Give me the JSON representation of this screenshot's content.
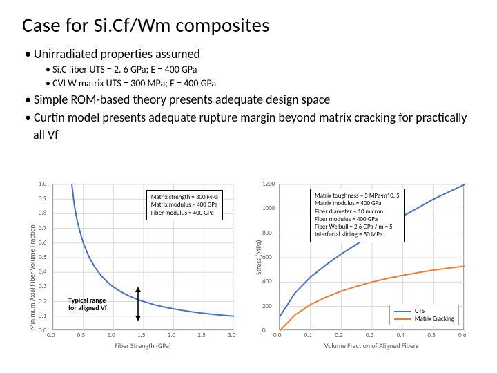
{
  "title": "Case for Si.Cf/Wm composites",
  "bullets": {
    "b1": "Unirradiated properties assumed",
    "b1a": "Si.C fiber UTS = 2. 6 GPa; E = 400 GPa",
    "b1b": "CVI W matrix UTS = 300 MPa; E = 400 GPa",
    "b2": "Simple ROM-based theory presents adequate design space",
    "b3": "Curtin model presents adequate rupture margin beyond matrix cracking for practically all Vf"
  },
  "chartA": {
    "type": "line",
    "ylabel": "Minimum Axial Fiber Volume Fraction",
    "xlabel": "Fiber Strength (GPa)",
    "xlim": [
      0.0,
      3.0
    ],
    "xtick_step": 0.5,
    "ylim": [
      0.0,
      1.0
    ],
    "ytick_step": 0.1,
    "minor_x": 5,
    "series": {
      "color": "#4472c4",
      "points": [
        [
          0.31,
          1.0
        ],
        [
          0.35,
          0.86
        ],
        [
          0.4,
          0.75
        ],
        [
          0.45,
          0.67
        ],
        [
          0.5,
          0.6
        ],
        [
          0.6,
          0.5
        ],
        [
          0.7,
          0.43
        ],
        [
          0.8,
          0.375
        ],
        [
          0.9,
          0.333
        ],
        [
          1.0,
          0.3
        ],
        [
          1.1,
          0.273
        ],
        [
          1.2,
          0.25
        ],
        [
          1.3,
          0.231
        ],
        [
          1.4,
          0.214
        ],
        [
          1.5,
          0.2
        ],
        [
          1.7,
          0.176
        ],
        [
          1.9,
          0.158
        ],
        [
          2.1,
          0.143
        ],
        [
          2.3,
          0.13
        ],
        [
          2.5,
          0.12
        ],
        [
          2.7,
          0.111
        ],
        [
          3.0,
          0.1
        ]
      ]
    },
    "textbox": {
      "lines": [
        "Matrix strength = 300 MPa",
        "Matrix modulus = 400 GPa",
        "Fiber modulus = 400 GPa"
      ]
    },
    "annotation": {
      "label_l1": "Typical range",
      "label_l2": "for aligned Vf"
    },
    "colors": {
      "axis": "#a6a6a6",
      "grid": "#d9d9d9",
      "text": "#595959"
    }
  },
  "chartB": {
    "type": "line",
    "ylabel": "Stress (MPa)",
    "xlabel": "Volume Fraction of Aligned Fibers",
    "xlim": [
      0.0,
      0.6
    ],
    "xtick_step": 0.1,
    "ylim": [
      0,
      1200
    ],
    "ytick_step": 200,
    "series": [
      {
        "name": "UTS",
        "color": "#4472c4",
        "points": [
          [
            0.0,
            115
          ],
          [
            0.05,
            310
          ],
          [
            0.1,
            440
          ],
          [
            0.15,
            540
          ],
          [
            0.2,
            630
          ],
          [
            0.25,
            710
          ],
          [
            0.3,
            790
          ],
          [
            0.35,
            865
          ],
          [
            0.4,
            940
          ],
          [
            0.45,
            1010
          ],
          [
            0.5,
            1080
          ],
          [
            0.55,
            1140
          ],
          [
            0.6,
            1200
          ]
        ]
      },
      {
        "name": "Matrix Cracking",
        "color": "#ed7d31",
        "points": [
          [
            0.0,
            0
          ],
          [
            0.05,
            130
          ],
          [
            0.1,
            215
          ],
          [
            0.15,
            275
          ],
          [
            0.2,
            325
          ],
          [
            0.25,
            365
          ],
          [
            0.3,
            400
          ],
          [
            0.35,
            430
          ],
          [
            0.4,
            455
          ],
          [
            0.45,
            478
          ],
          [
            0.5,
            498
          ],
          [
            0.55,
            515
          ],
          [
            0.6,
            530
          ]
        ]
      }
    ],
    "textbox": {
      "lines": [
        "Matrix toughness = 5 MPa·m^0. 5",
        "Matrix modulus = 400 GPa",
        "Fiber diameter = 10 micron",
        "Fiber modulus = 400 GPa",
        "Fiber Weibull = 2.6 GPa / m = 5",
        "Interfacial sliding = 50 MPa"
      ]
    },
    "legend": {
      "items": [
        "UTS",
        "Matrix Cracking"
      ]
    },
    "colors": {
      "axis": "#a6a6a6",
      "grid": "#d9d9d9",
      "text": "#595959"
    }
  }
}
